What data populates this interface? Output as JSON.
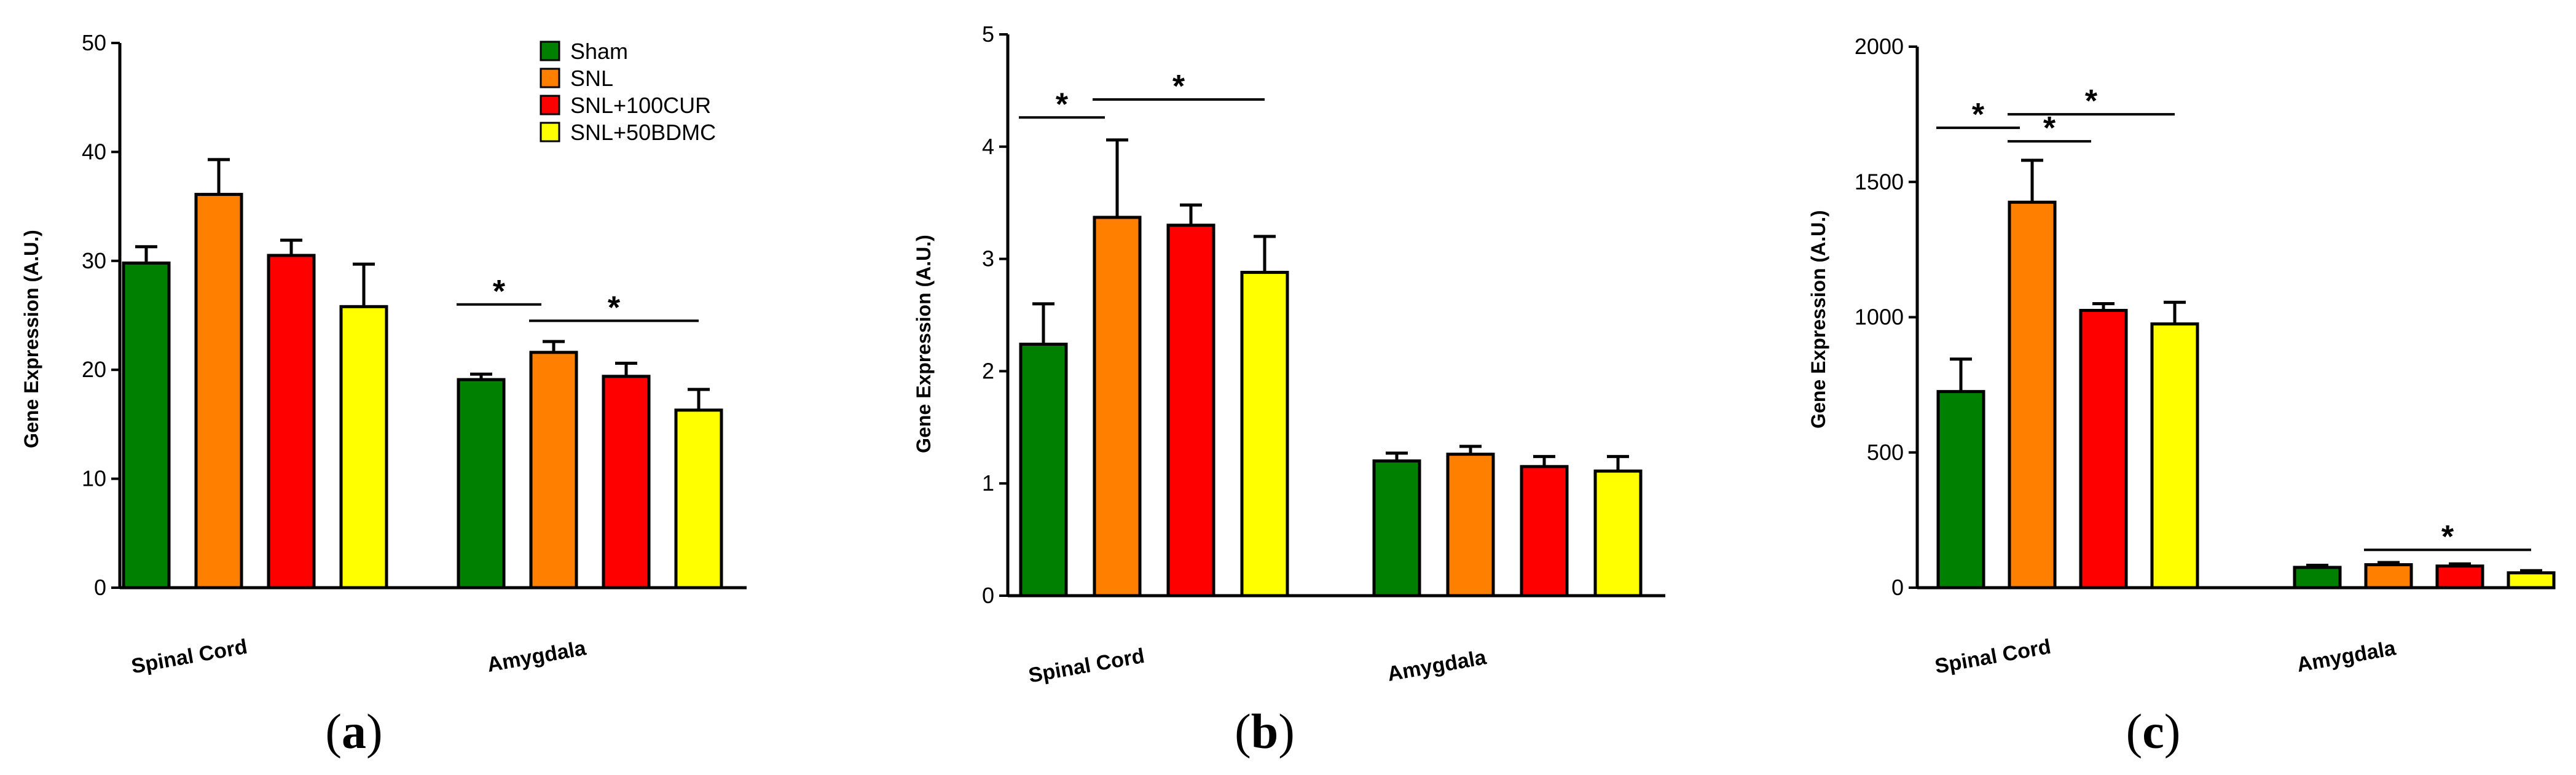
{
  "chart_data": [
    {
      "type": "bar",
      "panel_label": "(a)",
      "panel_letter": "a",
      "ylabel": "Gene Expression (A.U.)",
      "ylim": [
        0,
        50
      ],
      "yticks": [
        0,
        10,
        20,
        30,
        40,
        50
      ],
      "categories": [
        "Spinal Cord",
        "Amygdala"
      ],
      "legend_position": "top-right",
      "series": [
        {
          "name": "Sham",
          "color": "#008000",
          "values": [
            29.8,
            19.1
          ],
          "errors": [
            1.5,
            0.5
          ]
        },
        {
          "name": "SNL",
          "color": "#ff8000",
          "values": [
            36.1,
            21.6
          ],
          "errors": [
            3.2,
            1.0
          ]
        },
        {
          "name": "SNL+100CUR",
          "color": "#ff0000",
          "values": [
            30.5,
            19.4
          ],
          "errors": [
            1.4,
            1.2
          ]
        },
        {
          "name": "SNL+50BDMC",
          "color": "#ffff00",
          "values": [
            25.8,
            16.3
          ],
          "errors": [
            3.9,
            1.9
          ]
        }
      ],
      "significance": [
        {
          "label": "*",
          "group": 1,
          "from": 0,
          "to": 1,
          "y": 26.0
        },
        {
          "label": "*",
          "group": 1,
          "from": 1,
          "to": 3,
          "y": 24.5
        }
      ]
    },
    {
      "type": "bar",
      "panel_label": "(b)",
      "panel_letter": "b",
      "ylabel": "Gene Expression (A.U.)",
      "ylim": [
        0,
        5
      ],
      "yticks": [
        0,
        1,
        2,
        3,
        4,
        5
      ],
      "categories": [
        "Spinal Cord",
        "Amygdala"
      ],
      "series": [
        {
          "name": "Sham",
          "color": "#008000",
          "values": [
            2.24,
            1.2
          ],
          "errors": [
            0.36,
            0.07
          ]
        },
        {
          "name": "SNL",
          "color": "#ff8000",
          "values": [
            3.37,
            1.26
          ],
          "errors": [
            0.69,
            0.07
          ]
        },
        {
          "name": "SNL+100CUR",
          "color": "#ff0000",
          "values": [
            3.3,
            1.15
          ],
          "errors": [
            0.18,
            0.09
          ]
        },
        {
          "name": "SNL+50BDMC",
          "color": "#ffff00",
          "values": [
            2.88,
            1.11
          ],
          "errors": [
            0.32,
            0.13
          ]
        }
      ],
      "significance": [
        {
          "label": "*",
          "group": 0,
          "from": 0,
          "to": 1,
          "y": 4.26
        },
        {
          "label": "*",
          "group": 0,
          "from": 1,
          "to": 3,
          "y": 4.42
        }
      ]
    },
    {
      "type": "bar",
      "panel_label": "(c)",
      "panel_letter": "c",
      "ylabel": "Gene Expression (A.U.)",
      "ylim": [
        0,
        2000
      ],
      "yticks": [
        0,
        500,
        1000,
        1500,
        2000
      ],
      "categories": [
        "Spinal Cord",
        "Amygdala"
      ],
      "series": [
        {
          "name": "Sham",
          "color": "#008000",
          "values": [
            725,
            75
          ],
          "errors": [
            120,
            8
          ]
        },
        {
          "name": "SNL",
          "color": "#ff8000",
          "values": [
            1425,
            85
          ],
          "errors": [
            155,
            8
          ]
        },
        {
          "name": "SNL+100CUR",
          "color": "#ff0000",
          "values": [
            1025,
            80
          ],
          "errors": [
            25,
            8
          ]
        },
        {
          "name": "SNL+50BDMC",
          "color": "#ffff00",
          "values": [
            975,
            55
          ],
          "errors": [
            80,
            8
          ]
        }
      ],
      "significance": [
        {
          "label": "*",
          "group": 0,
          "from": 0,
          "to": 1,
          "y": 1700
        },
        {
          "label": "*",
          "group": 0,
          "from": 1,
          "to": 2,
          "y": 1650
        },
        {
          "label": "*",
          "group": 0,
          "from": 1,
          "to": 3,
          "y": 1750
        },
        {
          "label": "*",
          "group": 1,
          "from": 1,
          "to": 3,
          "y": 140
        }
      ]
    }
  ]
}
